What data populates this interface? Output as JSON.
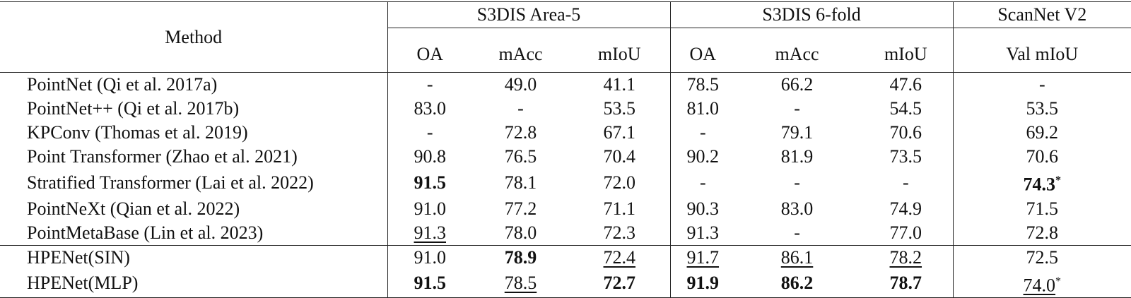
{
  "table": {
    "header": {
      "method": "Method",
      "groups": [
        "S3DIS Area-5",
        "S3DIS 6-fold",
        "ScanNet V2"
      ],
      "columns": [
        "OA",
        "mAcc",
        "mIoU",
        "OA",
        "mAcc",
        "mIoU",
        "Val mIoU"
      ]
    },
    "rows": [
      [
        "PointNet (Qi et al. 2017a)",
        "-",
        "49.0",
        "41.1",
        "78.5",
        "66.2",
        "47.6",
        "-"
      ],
      [
        "PointNet++ (Qi et al. 2017b)",
        "83.0",
        "-",
        "53.5",
        "81.0",
        "-",
        "54.5",
        "53.5"
      ],
      [
        "KPConv (Thomas et al. 2019)",
        "-",
        "72.8",
        "67.1",
        "-",
        "79.1",
        "70.6",
        "69.2"
      ],
      [
        "Point Transformer (Zhao et al. 2021)",
        "90.8",
        "76.5",
        "70.4",
        "90.2",
        "81.9",
        "73.5",
        "70.6"
      ],
      [
        "Stratified Transformer (Lai et al. 2022)",
        "91.5",
        "78.1",
        "72.0",
        "-",
        "-",
        "-",
        {
          "value": "74.3",
          "note": "*"
        }
      ],
      [
        "PointNeXt (Qian et al. 2022)",
        "91.0",
        "77.2",
        "71.1",
        "90.3",
        "83.0",
        "74.9",
        "71.5"
      ],
      [
        "PointMetaBase (Lin et al. 2023)",
        "91.3",
        "78.0",
        "72.3",
        "91.3",
        "-",
        "77.0",
        "72.8"
      ],
      [
        "HPENet(SIN)",
        "91.0",
        "78.9",
        "72.4",
        "91.7",
        "86.1",
        "78.2",
        "72.5"
      ],
      [
        "HPENet(MLP)",
        "91.5",
        "78.5",
        "72.7",
        "91.9",
        "86.2",
        "78.7",
        {
          "value": "74.0",
          "note": "*"
        }
      ]
    ]
  }
}
